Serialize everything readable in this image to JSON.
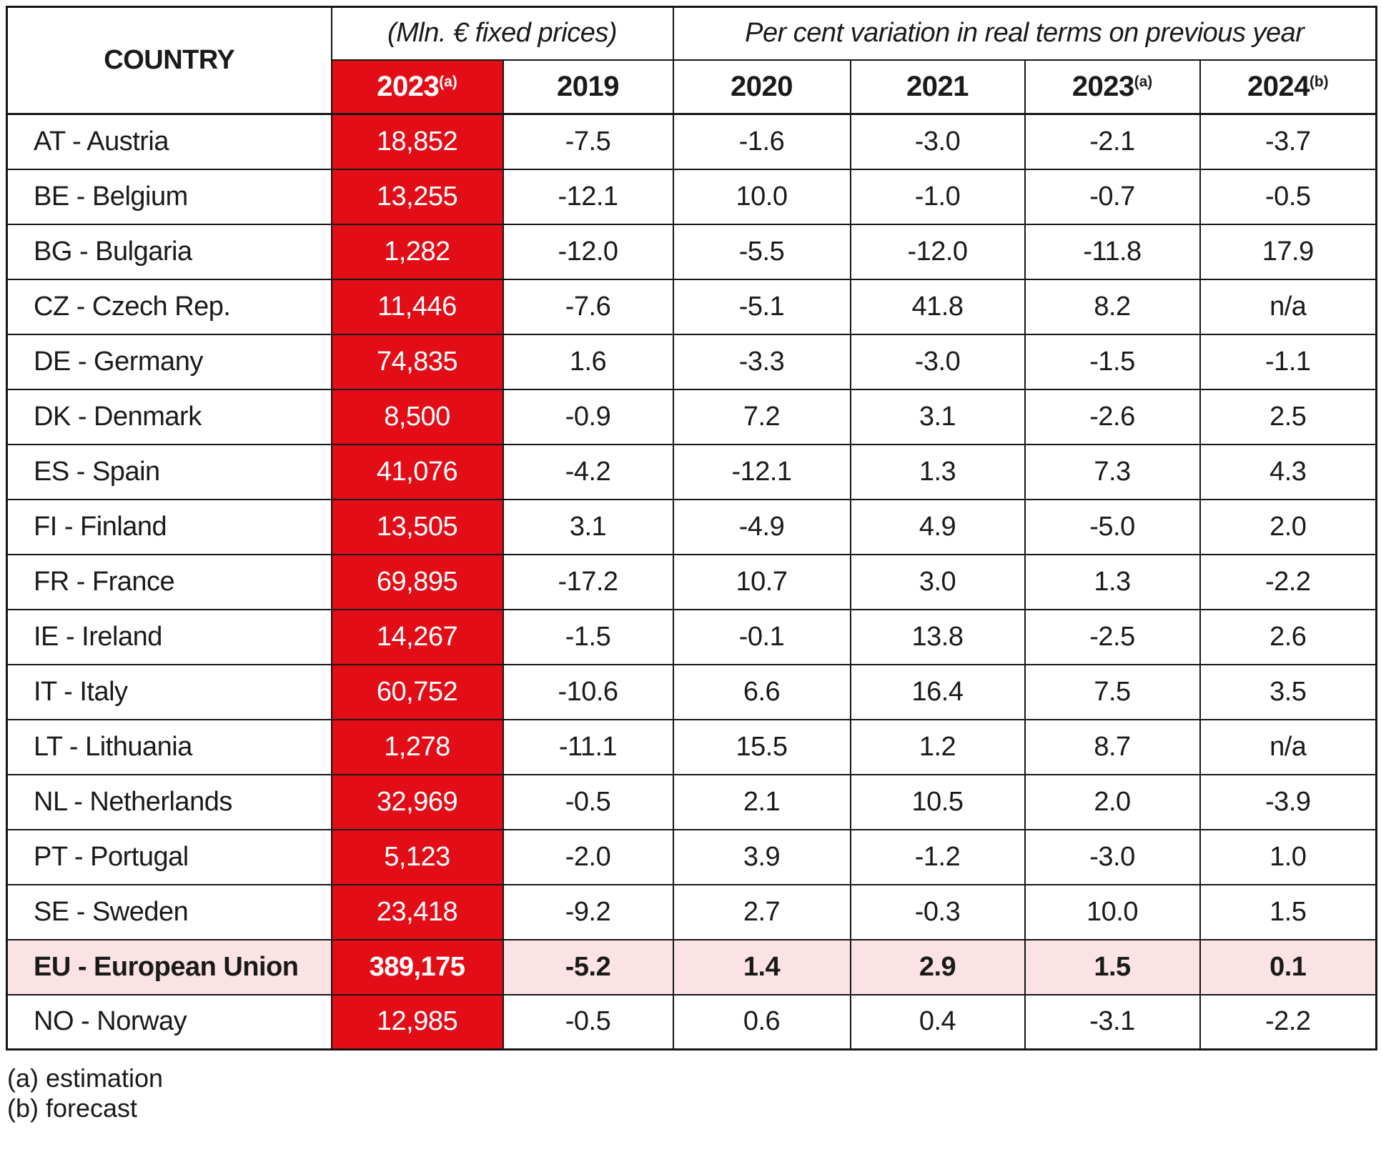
{
  "colors": {
    "red": "#e30d18",
    "pink": "#fbe3e5",
    "border": "#161616",
    "text": "#1a1a1a",
    "background": "#ffffff"
  },
  "table": {
    "country_header": "COUNTRY",
    "group_headers": {
      "mln": "(Mln. € fixed prices)",
      "pct": "Per cent variation in real terms on previous year"
    },
    "year_headers": [
      {
        "label": "2023",
        "sup": "(a)"
      },
      {
        "label": "2019",
        "sup": ""
      },
      {
        "label": "2020",
        "sup": ""
      },
      {
        "label": "2021",
        "sup": ""
      },
      {
        "label": "2023",
        "sup": "(a)"
      },
      {
        "label": "2024",
        "sup": "(b)"
      }
    ],
    "rows": [
      {
        "country": "AT - Austria",
        "mln": "18,852",
        "y2019": "-7.5",
        "y2020": "-1.6",
        "y2021": "-3.0",
        "y2023": "-2.1",
        "y2024": "-3.7",
        "bold": false
      },
      {
        "country": "BE - Belgium",
        "mln": "13,255",
        "y2019": "-12.1",
        "y2020": "10.0",
        "y2021": "-1.0",
        "y2023": "-0.7",
        "y2024": "-0.5",
        "bold": false
      },
      {
        "country": "BG - Bulgaria",
        "mln": "1,282",
        "y2019": "-12.0",
        "y2020": "-5.5",
        "y2021": "-12.0",
        "y2023": "-11.8",
        "y2024": "17.9",
        "bold": false
      },
      {
        "country": "CZ - Czech Rep.",
        "mln": "11,446",
        "y2019": "-7.6",
        "y2020": "-5.1",
        "y2021": "41.8",
        "y2023": "8.2",
        "y2024": "n/a",
        "bold": false
      },
      {
        "country": "DE - Germany",
        "mln": "74,835",
        "y2019": "1.6",
        "y2020": "-3.3",
        "y2021": "-3.0",
        "y2023": "-1.5",
        "y2024": "-1.1",
        "bold": false
      },
      {
        "country": "DK - Denmark",
        "mln": "8,500",
        "y2019": "-0.9",
        "y2020": "7.2",
        "y2021": "3.1",
        "y2023": "-2.6",
        "y2024": "2.5",
        "bold": false
      },
      {
        "country": "ES - Spain",
        "mln": "41,076",
        "y2019": "-4.2",
        "y2020": "-12.1",
        "y2021": "1.3",
        "y2023": "7.3",
        "y2024": "4.3",
        "bold": false
      },
      {
        "country": "FI - Finland",
        "mln": "13,505",
        "y2019": "3.1",
        "y2020": "-4.9",
        "y2021": "4.9",
        "y2023": "-5.0",
        "y2024": "2.0",
        "bold": false
      },
      {
        "country": "FR - France",
        "mln": "69,895",
        "y2019": "-17.2",
        "y2020": "10.7",
        "y2021": "3.0",
        "y2023": "1.3",
        "y2024": "-2.2",
        "bold": false
      },
      {
        "country": "IE - Ireland",
        "mln": "14,267",
        "y2019": "-1.5",
        "y2020": "-0.1",
        "y2021": "13.8",
        "y2023": "-2.5",
        "y2024": "2.6",
        "bold": false
      },
      {
        "country": "IT - Italy",
        "mln": "60,752",
        "y2019": "-10.6",
        "y2020": "6.6",
        "y2021": "16.4",
        "y2023": "7.5",
        "y2024": "3.5",
        "bold": false
      },
      {
        "country": "LT - Lithuania",
        "mln": "1,278",
        "y2019": "-11.1",
        "y2020": "15.5",
        "y2021": "1.2",
        "y2023": "8.7",
        "y2024": "n/a",
        "bold": false
      },
      {
        "country": "NL - Netherlands",
        "mln": "32,969",
        "y2019": "-0.5",
        "y2020": "2.1",
        "y2021": "10.5",
        "y2023": "2.0",
        "y2024": "-3.9",
        "bold": false
      },
      {
        "country": "PT - Portugal",
        "mln": "5,123",
        "y2019": "-2.0",
        "y2020": "3.9",
        "y2021": "-1.2",
        "y2023": "-3.0",
        "y2024": "1.0",
        "bold": false
      },
      {
        "country": "SE - Sweden",
        "mln": "23,418",
        "y2019": "-9.2",
        "y2020": "2.7",
        "y2021": "-0.3",
        "y2023": "10.0",
        "y2024": "1.5",
        "bold": false
      },
      {
        "country": "EU - European Union",
        "mln": "389,175",
        "y2019": "-5.2",
        "y2020": "1.4",
        "y2021": "2.9",
        "y2023": "1.5",
        "y2024": "0.1",
        "bold": true
      },
      {
        "country": "NO - Norway",
        "mln": "12,985",
        "y2019": "-0.5",
        "y2020": "0.6",
        "y2021": "0.4",
        "y2023": "-3.1",
        "y2024": "-2.2",
        "bold": false
      }
    ],
    "footnotes": [
      "(a) estimation",
      "(b) forecast"
    ]
  }
}
